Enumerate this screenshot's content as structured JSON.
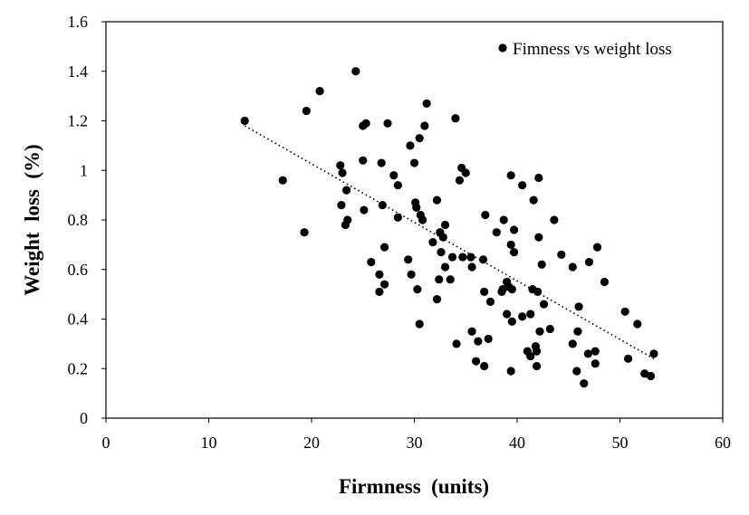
{
  "chart_data": {
    "type": "scatter",
    "title": "",
    "xlabel": "Firmness  (units)",
    "ylabel": "Weight  loss  (%)",
    "xlim": [
      0,
      60
    ],
    "ylim": [
      0,
      1.6
    ],
    "xticks": [
      0,
      10,
      20,
      30,
      40,
      50,
      60
    ],
    "yticks": [
      0,
      0.2,
      0.4,
      0.6,
      0.8,
      1,
      1.2,
      1.4,
      1.6
    ],
    "xtick_labels": [
      "0",
      "10",
      "20",
      "30",
      "40",
      "50",
      "60"
    ],
    "ytick_labels": [
      "0",
      "0.2",
      "0.4",
      "0.6",
      "0.8",
      "1",
      "1.2",
      "1.4",
      "1.6"
    ],
    "grid": false,
    "legend_position": "top-right",
    "marker_color": "#000000",
    "series": [
      {
        "name": "Fimness vs weight loss",
        "marker": "circle",
        "points": [
          [
            13.5,
            1.2
          ],
          [
            17.2,
            0.96
          ],
          [
            19.5,
            1.24
          ],
          [
            20.8,
            1.32
          ],
          [
            24.3,
            1.4
          ],
          [
            19.3,
            0.75
          ],
          [
            22.8,
            1.02
          ],
          [
            23.0,
            0.99
          ],
          [
            25.3,
            1.19
          ],
          [
            25.0,
            1.18
          ],
          [
            27.4,
            1.19
          ],
          [
            25.0,
            1.04
          ],
          [
            26.8,
            1.03
          ],
          [
            28.0,
            0.98
          ],
          [
            28.4,
            0.94
          ],
          [
            29.6,
            1.1
          ],
          [
            30.0,
            1.03
          ],
          [
            30.5,
            1.13
          ],
          [
            31.0,
            1.18
          ],
          [
            31.2,
            1.27
          ],
          [
            34.0,
            1.21
          ],
          [
            34.6,
            1.01
          ],
          [
            35.0,
            0.99
          ],
          [
            34.4,
            0.96
          ],
          [
            39.4,
            0.98
          ],
          [
            40.5,
            0.94
          ],
          [
            42.1,
            0.97
          ],
          [
            41.6,
            0.88
          ],
          [
            43.6,
            0.8
          ],
          [
            23.4,
            0.92
          ],
          [
            22.9,
            0.86
          ],
          [
            25.1,
            0.84
          ],
          [
            23.5,
            0.8
          ],
          [
            23.3,
            0.78
          ],
          [
            26.9,
            0.86
          ],
          [
            28.4,
            0.81
          ],
          [
            30.1,
            0.87
          ],
          [
            30.2,
            0.85
          ],
          [
            30.6,
            0.82
          ],
          [
            30.8,
            0.8
          ],
          [
            32.2,
            0.88
          ],
          [
            32.5,
            0.75
          ],
          [
            33.0,
            0.78
          ],
          [
            32.8,
            0.73
          ],
          [
            31.8,
            0.71
          ],
          [
            32.6,
            0.67
          ],
          [
            33.7,
            0.65
          ],
          [
            34.7,
            0.65
          ],
          [
            36.9,
            0.82
          ],
          [
            38.7,
            0.8
          ],
          [
            38.0,
            0.75
          ],
          [
            39.7,
            0.76
          ],
          [
            39.4,
            0.7
          ],
          [
            39.7,
            0.67
          ],
          [
            42.1,
            0.73
          ],
          [
            44.3,
            0.66
          ],
          [
            45.4,
            0.61
          ],
          [
            42.4,
            0.62
          ],
          [
            47.8,
            0.69
          ],
          [
            47.0,
            0.63
          ],
          [
            48.5,
            0.55
          ],
          [
            27.1,
            0.69
          ],
          [
            25.8,
            0.63
          ],
          [
            26.6,
            0.58
          ],
          [
            27.1,
            0.54
          ],
          [
            26.6,
            0.51
          ],
          [
            29.7,
            0.58
          ],
          [
            29.4,
            0.64
          ],
          [
            30.3,
            0.52
          ],
          [
            33.0,
            0.61
          ],
          [
            32.4,
            0.56
          ],
          [
            32.2,
            0.48
          ],
          [
            33.5,
            0.56
          ],
          [
            35.5,
            0.65
          ],
          [
            35.6,
            0.61
          ],
          [
            36.7,
            0.64
          ],
          [
            36.8,
            0.51
          ],
          [
            37.4,
            0.47
          ],
          [
            38.6,
            0.52
          ],
          [
            39.2,
            0.53
          ],
          [
            39.5,
            0.52
          ],
          [
            38.5,
            0.51
          ],
          [
            39.0,
            0.55
          ],
          [
            41.5,
            0.52
          ],
          [
            42.0,
            0.51
          ],
          [
            42.6,
            0.46
          ],
          [
            39.0,
            0.42
          ],
          [
            39.5,
            0.39
          ],
          [
            40.5,
            0.41
          ],
          [
            41.3,
            0.42
          ],
          [
            30.5,
            0.38
          ],
          [
            35.6,
            0.35
          ],
          [
            36.2,
            0.31
          ],
          [
            34.1,
            0.3
          ],
          [
            37.2,
            0.32
          ],
          [
            36.0,
            0.23
          ],
          [
            36.8,
            0.21
          ],
          [
            41.0,
            0.27
          ],
          [
            41.8,
            0.29
          ],
          [
            41.9,
            0.27
          ],
          [
            42.2,
            0.35
          ],
          [
            43.2,
            0.36
          ],
          [
            41.3,
            0.25
          ],
          [
            41.9,
            0.21
          ],
          [
            39.4,
            0.19
          ],
          [
            45.4,
            0.3
          ],
          [
            45.9,
            0.35
          ],
          [
            46.0,
            0.45
          ],
          [
            46.9,
            0.26
          ],
          [
            47.6,
            0.27
          ],
          [
            45.8,
            0.19
          ],
          [
            47.6,
            0.22
          ],
          [
            46.5,
            0.14
          ],
          [
            50.5,
            0.43
          ],
          [
            51.7,
            0.38
          ],
          [
            50.8,
            0.24
          ],
          [
            52.4,
            0.18
          ],
          [
            53.0,
            0.17
          ],
          [
            53.3,
            0.26
          ]
        ]
      }
    ],
    "trendline": {
      "style": "dotted",
      "x": [
        13.5,
        53.3
      ],
      "y": [
        1.18,
        0.24
      ]
    }
  }
}
